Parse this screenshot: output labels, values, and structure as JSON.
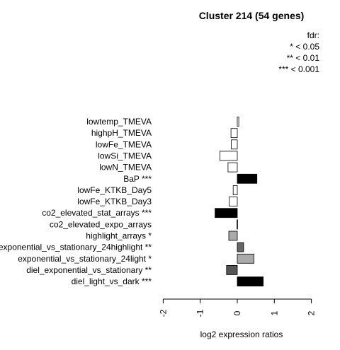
{
  "chart_data": {
    "type": "bar",
    "orientation": "horizontal",
    "title": "Cluster 214 (54 genes)",
    "xlabel": "log2 expression ratios",
    "xlim": [
      -2,
      2
    ],
    "xticks": [
      "-2",
      "-1",
      "0",
      "1",
      "2"
    ],
    "legend": {
      "title": "fdr:",
      "entries": [
        "* < 0.05",
        "** < 0.01",
        "*** < 0.001"
      ],
      "position": "top-right"
    },
    "categories": [
      "lowtemp_TMEVA",
      "highpH_TMEVA",
      "lowFe_TMEVA",
      "lowSi_TMEVA",
      "lowN_TMEVA",
      "BaP ***",
      "lowFe_KTKB_Day5",
      "lowFe_KTKB_Day3",
      "co2_elevated_stat_arrays ***",
      "co2_elevated_expo_arrays",
      "highlight_arrays *",
      "exponential_vs_stationary_24highlight **",
      "exponential_vs_stationary_24light *",
      "diel_exponential_vs_stationary **",
      "diel_light_vs_dark ***"
    ],
    "values": [
      0.04,
      -0.17,
      -0.16,
      -0.47,
      -0.25,
      0.53,
      -0.11,
      -0.22,
      -0.6,
      -0.01,
      -0.23,
      0.17,
      0.45,
      -0.29,
      0.7
    ],
    "fills": [
      "#ffffff",
      "#ffffff",
      "#ffffff",
      "#ffffff",
      "#ffffff",
      "#000000",
      "#ffffff",
      "#ffffff",
      "#000000",
      "#ffffff",
      "#aaaaaa",
      "#666666",
      "#aaaaaa",
      "#555555",
      "#000000"
    ]
  }
}
